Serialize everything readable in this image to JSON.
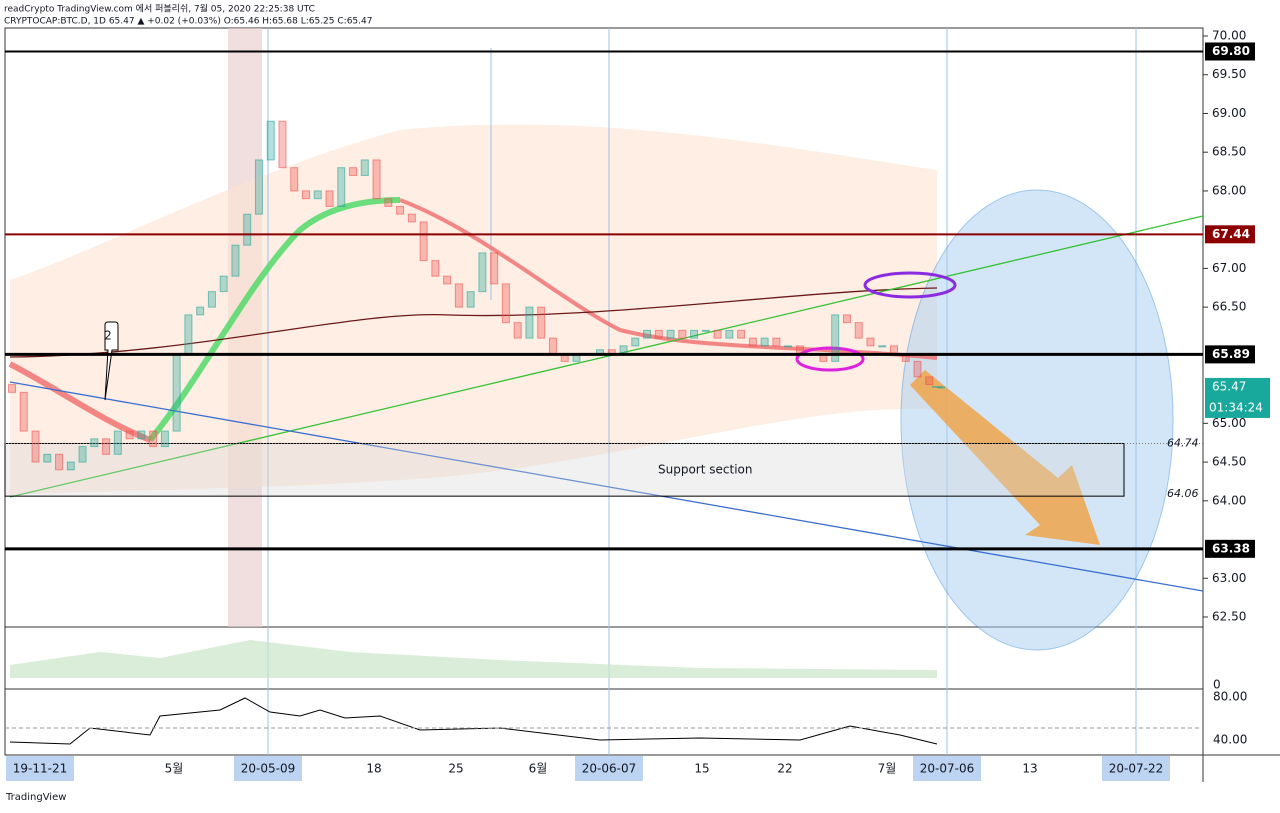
{
  "header": {
    "line1": "readCrypto TradingView.com 에서 퍼블리쉬, 7월 05, 2020 22:25:38 UTC",
    "line2": "CRYPTOCAP:BTC.D, 1D 65.47 ▲ +0.02 (+0.03%) O:65.46 H:65.68 L:65.25 C:65.47"
  },
  "chart_data": {
    "type": "candlestick",
    "up_color": "#26a69a",
    "down_color": "#ef5350",
    "open": [
      65.5,
      65.4,
      64.9,
      64.5,
      64.6,
      64.4,
      64.5,
      64.7,
      64.8,
      64.6,
      64.9,
      64.8,
      64.9,
      64.7,
      64.9,
      65.9,
      66.4,
      66.5,
      66.7,
      66.9,
      67.3,
      67.7,
      68.4,
      68.9,
      68.3,
      68.0,
      67.9,
      68.0,
      67.8,
      68.3,
      68.2,
      68.4,
      67.9,
      67.8,
      67.7,
      67.6,
      67.1,
      66.9,
      66.8,
      66.5,
      66.7,
      67.2,
      66.8,
      66.3,
      66.1,
      66.5,
      66.1,
      65.9,
      65.8,
      65.9,
      65.9,
      65.95,
      65.9,
      66.0,
      66.1,
      66.2,
      66.1,
      66.2,
      66.1,
      66.2,
      66.2,
      66.1,
      66.2,
      66.1,
      66.0,
      66.1,
      66.0,
      66.0,
      65.9,
      65.9,
      65.8,
      66.4,
      66.3,
      66.1,
      66.0,
      66.0,
      65.9,
      65.8,
      65.6,
      65.46
    ],
    "close": [
      65.4,
      64.9,
      64.5,
      64.6,
      64.4,
      64.5,
      64.7,
      64.8,
      64.6,
      64.9,
      64.8,
      64.9,
      64.7,
      64.9,
      65.9,
      66.4,
      66.5,
      66.7,
      66.9,
      67.3,
      67.7,
      68.4,
      68.9,
      68.3,
      68.0,
      67.9,
      68.0,
      67.8,
      68.3,
      68.2,
      68.4,
      67.9,
      67.8,
      67.7,
      67.6,
      67.1,
      66.9,
      66.8,
      66.5,
      66.7,
      67.2,
      66.8,
      66.3,
      66.1,
      66.5,
      66.1,
      65.9,
      65.8,
      65.9,
      65.9,
      65.95,
      65.9,
      66.0,
      66.1,
      66.2,
      66.1,
      66.2,
      66.1,
      66.2,
      66.2,
      66.1,
      66.2,
      66.1,
      66.0,
      66.1,
      66.0,
      66.0,
      65.9,
      65.9,
      65.8,
      66.4,
      66.3,
      66.1,
      66.0,
      66.0,
      65.9,
      65.8,
      65.6,
      65.5,
      65.47
    ],
    "ylim": [
      62.5,
      70.0
    ],
    "yticks": [
      {
        "value": 70,
        "label": "70.00"
      },
      {
        "value": 69.5,
        "label": "69.50"
      },
      {
        "value": 69,
        "label": "69.00"
      },
      {
        "value": 68.5,
        "label": "68.50"
      },
      {
        "value": 68,
        "label": "68.00"
      },
      {
        "value": 67,
        "label": "67.00"
      },
      {
        "value": 66.5,
        "label": "66.50"
      },
      {
        "value": 65,
        "label": "65.00"
      },
      {
        "value": 64.5,
        "label": "64.50"
      },
      {
        "value": 64,
        "label": "64.00"
      },
      {
        "value": 63,
        "label": "63.00"
      },
      {
        "value": 62.5,
        "label": "62.50"
      }
    ],
    "levels": [
      {
        "value": 69.8,
        "label": "69.80",
        "color": "#000000"
      },
      {
        "value": 67.44,
        "label": "67.44",
        "color": "#8b0000"
      },
      {
        "value": 65.89,
        "label": "65.89",
        "color": "#000000"
      },
      {
        "value": 63.38,
        "label": "63.38",
        "color": "#000000"
      }
    ],
    "last_price": {
      "value": 65.47,
      "label": "65.47",
      "countdown": "01:34:24",
      "color": "#18a89c"
    },
    "support_zone": {
      "label": "Support section",
      "top": {
        "value": 64.74,
        "label": "64.74"
      },
      "bottom": {
        "value": 64.06,
        "label": "64.06"
      }
    },
    "wave_label": "2",
    "x_labels": [
      {
        "label": "19-11-21",
        "highlight": true
      },
      {
        "label": "5월"
      },
      {
        "label": "20-05-09",
        "highlight": true
      },
      {
        "label": "18"
      },
      {
        "label": "25"
      },
      {
        "label": "6월"
      },
      {
        "label": "20-06-07",
        "highlight": true
      },
      {
        "label": "15"
      },
      {
        "label": "22"
      },
      {
        "label": "7월"
      },
      {
        "label": "20-07-06",
        "highlight": true
      },
      {
        "label": "13"
      },
      {
        "label": "20-07-22",
        "highlight": true
      }
    ],
    "pane1_tick": "0",
    "pane2_ticks": [
      "80.00",
      "40.00"
    ]
  },
  "footer": "TradingView"
}
